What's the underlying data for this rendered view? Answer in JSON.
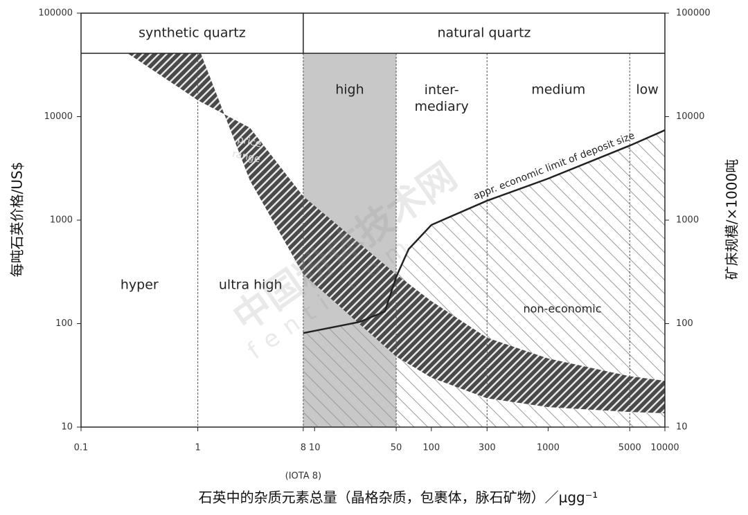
{
  "chart_data": {
    "type": "line",
    "log_x": true,
    "log_y": true,
    "xlim": [
      0.1,
      10000
    ],
    "xticks": [
      0.1,
      1,
      8,
      10,
      50,
      100,
      300,
      1000,
      5000,
      10000
    ],
    "ylim": [
      10,
      100000
    ],
    "yticks": [
      10,
      100,
      1000,
      10000,
      100000
    ],
    "y2lim": [
      10,
      100000
    ],
    "y2ticks": [
      10,
      100,
      1000,
      10000,
      100000
    ],
    "xlabel": "石英中的杂质元素总量（晶格杂质，包裹体，脉石矿物）／μgg⁻¹",
    "ylabel": "每吨石英价格/US$",
    "y2label": "矿床规模/×1000吨",
    "header": [
      {
        "label": "synthetic quartz",
        "from": 0.1,
        "to": 8
      },
      {
        "label": "natural quartz",
        "from": 8,
        "to": 10000
      }
    ],
    "zones": [
      {
        "label": "hyper",
        "from": 0.1,
        "to": 1
      },
      {
        "label": "ultra high",
        "from": 1,
        "to": 8
      },
      {
        "label": "high",
        "from": 8,
        "to": 50,
        "color": "#c8c8c8"
      },
      {
        "label": [
          "inter-",
          "mediary"
        ],
        "from": 50,
        "to": 300
      },
      {
        "label": "medium",
        "from": 300,
        "to": 5000
      },
      {
        "label": "low",
        "from": 5000,
        "to": 10000
      }
    ],
    "price_band": {
      "label": [
        "price",
        "range"
      ],
      "x_upper": [
        0.25,
        1,
        2.8,
        8,
        50,
        100,
        300,
        1000,
        5000,
        10000
      ],
      "upper": [
        41000,
        14400,
        7800,
        1700,
        300,
        165,
        73,
        46,
        31,
        28
      ],
      "x_lower": [
        1.06,
        2.8,
        8,
        50,
        100,
        300,
        1000,
        5000,
        10000
      ],
      "lower": [
        41000,
        2400,
        300,
        48,
        30,
        19,
        15.6,
        14,
        13.6
      ]
    },
    "series": [
      {
        "name": "appr. economic limit of deposit size",
        "color": "#222222",
        "axis": "y2",
        "x": [
          8,
          24.5,
          40,
          50,
          64,
          100,
          300,
          1000,
          5000,
          10000
        ],
        "values": [
          81,
          104,
          131,
          283,
          525,
          898,
          1540,
          2520,
          5250,
          7400
        ]
      }
    ],
    "region_label": "non-economic",
    "xtick_note": "(IOTA 8)",
    "watermark": [
      "中国粉体技术网",
      "fenti.com"
    ]
  }
}
